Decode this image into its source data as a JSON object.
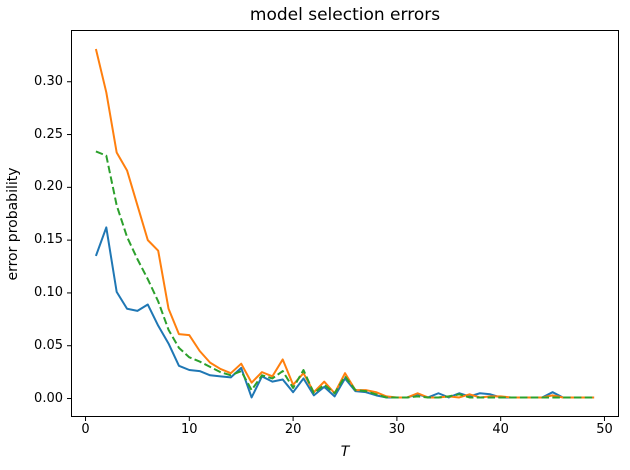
{
  "chart_data": {
    "type": "line",
    "title": "model selection errors",
    "xlabel": "T",
    "ylabel": "error probability",
    "grid": false,
    "legend": "none",
    "xlim": [
      -1.4,
      51.4
    ],
    "ylim": [
      -0.0175,
      0.349
    ],
    "xticks": {
      "values": [
        0,
        10,
        20,
        30,
        40,
        50
      ],
      "labels": [
        "0",
        "10",
        "20",
        "30",
        "40",
        "50"
      ]
    },
    "yticks": {
      "values": [
        0.0,
        0.05,
        0.1,
        0.15,
        0.2,
        0.25,
        0.3
      ],
      "labels": [
        "0.00",
        "0.05",
        "0.10",
        "0.15",
        "0.20",
        "0.25",
        "0.30"
      ]
    },
    "x": [
      1,
      2,
      3,
      4,
      5,
      6,
      7,
      8,
      9,
      10,
      11,
      12,
      13,
      14,
      15,
      16,
      17,
      18,
      19,
      20,
      21,
      22,
      23,
      24,
      25,
      26,
      27,
      28,
      29,
      30,
      31,
      32,
      33,
      34,
      35,
      36,
      37,
      38,
      39,
      40,
      41,
      42,
      43,
      44,
      45,
      46,
      47,
      48,
      49
    ],
    "series": [
      {
        "name": "blue-solid",
        "color": "#1f77b4",
        "style": "solid",
        "linewidth": 2,
        "values": [
          0.135,
          0.162,
          0.101,
          0.085,
          0.083,
          0.089,
          0.069,
          0.052,
          0.031,
          0.027,
          0.026,
          0.022,
          0.021,
          0.02,
          0.029,
          0.001,
          0.021,
          0.016,
          0.018,
          0.006,
          0.019,
          0.003,
          0.011,
          0.002,
          0.019,
          0.007,
          0.006,
          0.003,
          0.001,
          0.001,
          0.001,
          0.004,
          0.001,
          0.005,
          0.001,
          0.005,
          0.002,
          0.005,
          0.004,
          0.001,
          0.001,
          0.001,
          0.001,
          0.001,
          0.006,
          0.001,
          0.001,
          0.001,
          0.001
        ]
      },
      {
        "name": "orange-solid",
        "color": "#ff7f0e",
        "style": "solid",
        "linewidth": 2,
        "values": [
          0.331,
          0.29,
          0.233,
          0.216,
          0.183,
          0.15,
          0.14,
          0.085,
          0.061,
          0.06,
          0.045,
          0.034,
          0.028,
          0.024,
          0.033,
          0.015,
          0.025,
          0.021,
          0.037,
          0.013,
          0.024,
          0.006,
          0.016,
          0.005,
          0.024,
          0.008,
          0.008,
          0.006,
          0.002,
          0.001,
          0.001,
          0.005,
          0.001,
          0.001,
          0.002,
          0.001,
          0.004,
          0.001,
          0.002,
          0.002,
          0.001,
          0.001,
          0.001,
          0.001,
          0.003,
          0.001,
          0.001,
          0.001,
          0.001
        ]
      },
      {
        "name": "green-dashed",
        "color": "#2ca02c",
        "style": "dashed",
        "linewidth": 2,
        "values": [
          0.234,
          0.23,
          0.183,
          0.153,
          0.132,
          0.113,
          0.092,
          0.065,
          0.048,
          0.039,
          0.035,
          0.03,
          0.025,
          0.022,
          0.026,
          0.008,
          0.022,
          0.019,
          0.026,
          0.01,
          0.027,
          0.005,
          0.013,
          0.005,
          0.021,
          0.008,
          0.007,
          0.004,
          0.001,
          0.001,
          0.001,
          0.002,
          0.001,
          0.001,
          0.002,
          0.004,
          0.001,
          0.001,
          0.001,
          0.001,
          0.001,
          0.001,
          0.001,
          0.001,
          0.001,
          0.001,
          0.001,
          0.001,
          0.001
        ]
      }
    ],
    "spine_color": "#000000",
    "tick_color": "#000000"
  }
}
